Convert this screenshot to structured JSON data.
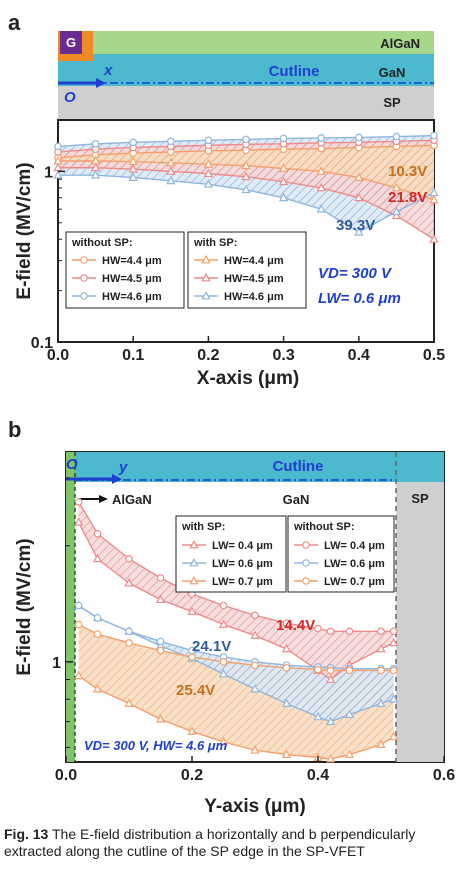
{
  "chart_data": [
    {
      "panel": "a",
      "type": "area",
      "xlabel": "X-axis (μm)",
      "ylabel": "E-field (MV/cm)",
      "xlim": [
        0.0,
        0.5
      ],
      "ylim": [
        0.1,
        2.0
      ],
      "yscale": "log",
      "xticks": [
        "0.0",
        "0.1",
        "0.2",
        "0.3",
        "0.4",
        "0.5"
      ],
      "yticks": [
        "0.1",
        "1"
      ],
      "x": [
        0.0,
        0.05,
        0.1,
        0.15,
        0.2,
        0.25,
        0.3,
        0.35,
        0.4,
        0.45,
        0.5
      ],
      "series": [
        {
          "name": "without SP: HW=4.4 μm",
          "color": "#f5a06a",
          "marker": "circle",
          "values": [
            1.2,
            1.25,
            1.28,
            1.3,
            1.32,
            1.33,
            1.35,
            1.36,
            1.38,
            1.4,
            1.42
          ]
        },
        {
          "name": "without SP: HW=4.5 μm",
          "color": "#ef8a8a",
          "marker": "circle",
          "values": [
            1.3,
            1.35,
            1.38,
            1.4,
            1.42,
            1.44,
            1.45,
            1.47,
            1.48,
            1.5,
            1.52
          ]
        },
        {
          "name": "without SP: HW=4.6 μm",
          "color": "#8fb6df",
          "marker": "circle",
          "values": [
            1.4,
            1.45,
            1.48,
            1.5,
            1.52,
            1.54,
            1.56,
            1.57,
            1.58,
            1.6,
            1.62
          ]
        },
        {
          "name": "with SP: HW=4.4 μm",
          "color": "#f5a06a",
          "marker": "triangle",
          "values": [
            1.15,
            1.15,
            1.14,
            1.12,
            1.1,
            1.08,
            1.04,
            1.0,
            0.92,
            0.8,
            0.68
          ]
        },
        {
          "name": "with SP: HW=4.5 μm",
          "color": "#ef8a8a",
          "marker": "triangle",
          "values": [
            1.05,
            1.05,
            1.03,
            1.0,
            0.97,
            0.93,
            0.87,
            0.8,
            0.7,
            0.55,
            0.4
          ]
        },
        {
          "name": "with SP: HW=4.6 μm",
          "color": "#8fb6df",
          "marker": "triangle",
          "values": [
            0.95,
            0.95,
            0.92,
            0.88,
            0.84,
            0.78,
            0.7,
            0.6,
            0.44,
            0.58,
            0.75
          ]
        }
      ],
      "annotations": [
        "10.3V",
        "21.8V",
        "39.3V"
      ],
      "conditions": [
        "VD= 300 V",
        "LW= 0.6 μm"
      ],
      "legend": {
        "without_title": "without SP:",
        "with_title": "with SP:",
        "entries": [
          "HW=4.4 μm",
          "HW=4.5 μm",
          "HW=4.6 μm"
        ]
      },
      "structure": {
        "gate": "G",
        "layer_top": "AlGaN",
        "cutline": "Cutline",
        "layer_mid": "GaN",
        "layer_bottom": "SP",
        "origin": "O",
        "axis": "x"
      }
    },
    {
      "panel": "b",
      "type": "area",
      "xlabel": "Y-axis (μm)",
      "ylabel": "E-field (MV/cm)",
      "xlim": [
        0.0,
        0.6
      ],
      "ylim": [
        0.55,
        3.5
      ],
      "yscale": "log",
      "xticks": [
        "0.0",
        "0.2",
        "0.4",
        "0.6"
      ],
      "yticks": [
        "1"
      ],
      "x": [
        0.02,
        0.05,
        0.1,
        0.15,
        0.2,
        0.25,
        0.3,
        0.35,
        0.4,
        0.42,
        0.45,
        0.5,
        0.52
      ],
      "series": [
        {
          "name": "with SP: LW= 0.4 μm",
          "color": "#ef8a8a",
          "marker": "triangle",
          "values": [
            2.3,
            1.85,
            1.6,
            1.45,
            1.35,
            1.25,
            1.17,
            1.08,
            0.95,
            0.9,
            0.98,
            1.08,
            1.12
          ]
        },
        {
          "name": "with SP: LW= 0.6 μm",
          "color": "#8fb6df",
          "marker": "triangle",
          "values": [
            1.4,
            1.3,
            1.2,
            1.1,
            1.02,
            0.93,
            0.85,
            0.78,
            0.72,
            0.7,
            0.73,
            0.78,
            0.8
          ]
        },
        {
          "name": "with SP: LW= 0.7 μm",
          "color": "#f5a06a",
          "marker": "triangle",
          "values": [
            0.92,
            0.85,
            0.78,
            0.71,
            0.66,
            0.62,
            0.59,
            0.575,
            0.565,
            0.56,
            0.575,
            0.61,
            0.64
          ]
        },
        {
          "name": "without SP: LW= 0.4 μm",
          "color": "#ef8a8a",
          "marker": "circle",
          "values": [
            2.6,
            2.15,
            1.85,
            1.65,
            1.5,
            1.4,
            1.32,
            1.26,
            1.22,
            1.2,
            1.2,
            1.2,
            1.2
          ]
        },
        {
          "name": "without SP: LW= 0.6 μm",
          "color": "#8fb6df",
          "marker": "circle",
          "values": [
            1.4,
            1.3,
            1.2,
            1.13,
            1.07,
            1.03,
            1.0,
            0.98,
            0.97,
            0.965,
            0.96,
            0.96,
            0.96
          ]
        },
        {
          "name": "without SP: LW= 0.7 μm",
          "color": "#f5a06a",
          "marker": "circle",
          "values": [
            1.25,
            1.18,
            1.12,
            1.07,
            1.03,
            1.0,
            0.98,
            0.965,
            0.955,
            0.95,
            0.95,
            0.95,
            0.95
          ]
        }
      ],
      "annotations": [
        "14.4V",
        "24.1V",
        "25.4V"
      ],
      "conditions": [
        "VD= 300 V, HW= 4.6 μm"
      ],
      "legend": {
        "with_title": "with SP:",
        "without_title": "without SP:",
        "entries": [
          "LW= 0.4 μm",
          "LW= 0.6 μm",
          "LW= 0.7 μm"
        ]
      },
      "structure": {
        "origin": "O",
        "axis": "y",
        "cutline": "Cutline",
        "layer_left": "AlGaN",
        "layer_mid": "GaN",
        "layer_right": "SP"
      }
    }
  ],
  "caption": {
    "label": "Fig. 13",
    "text": " The E-field distribution a horizontally and b perpendicularly extracted along the cutline of the SP edge in the SP-VFET"
  }
}
